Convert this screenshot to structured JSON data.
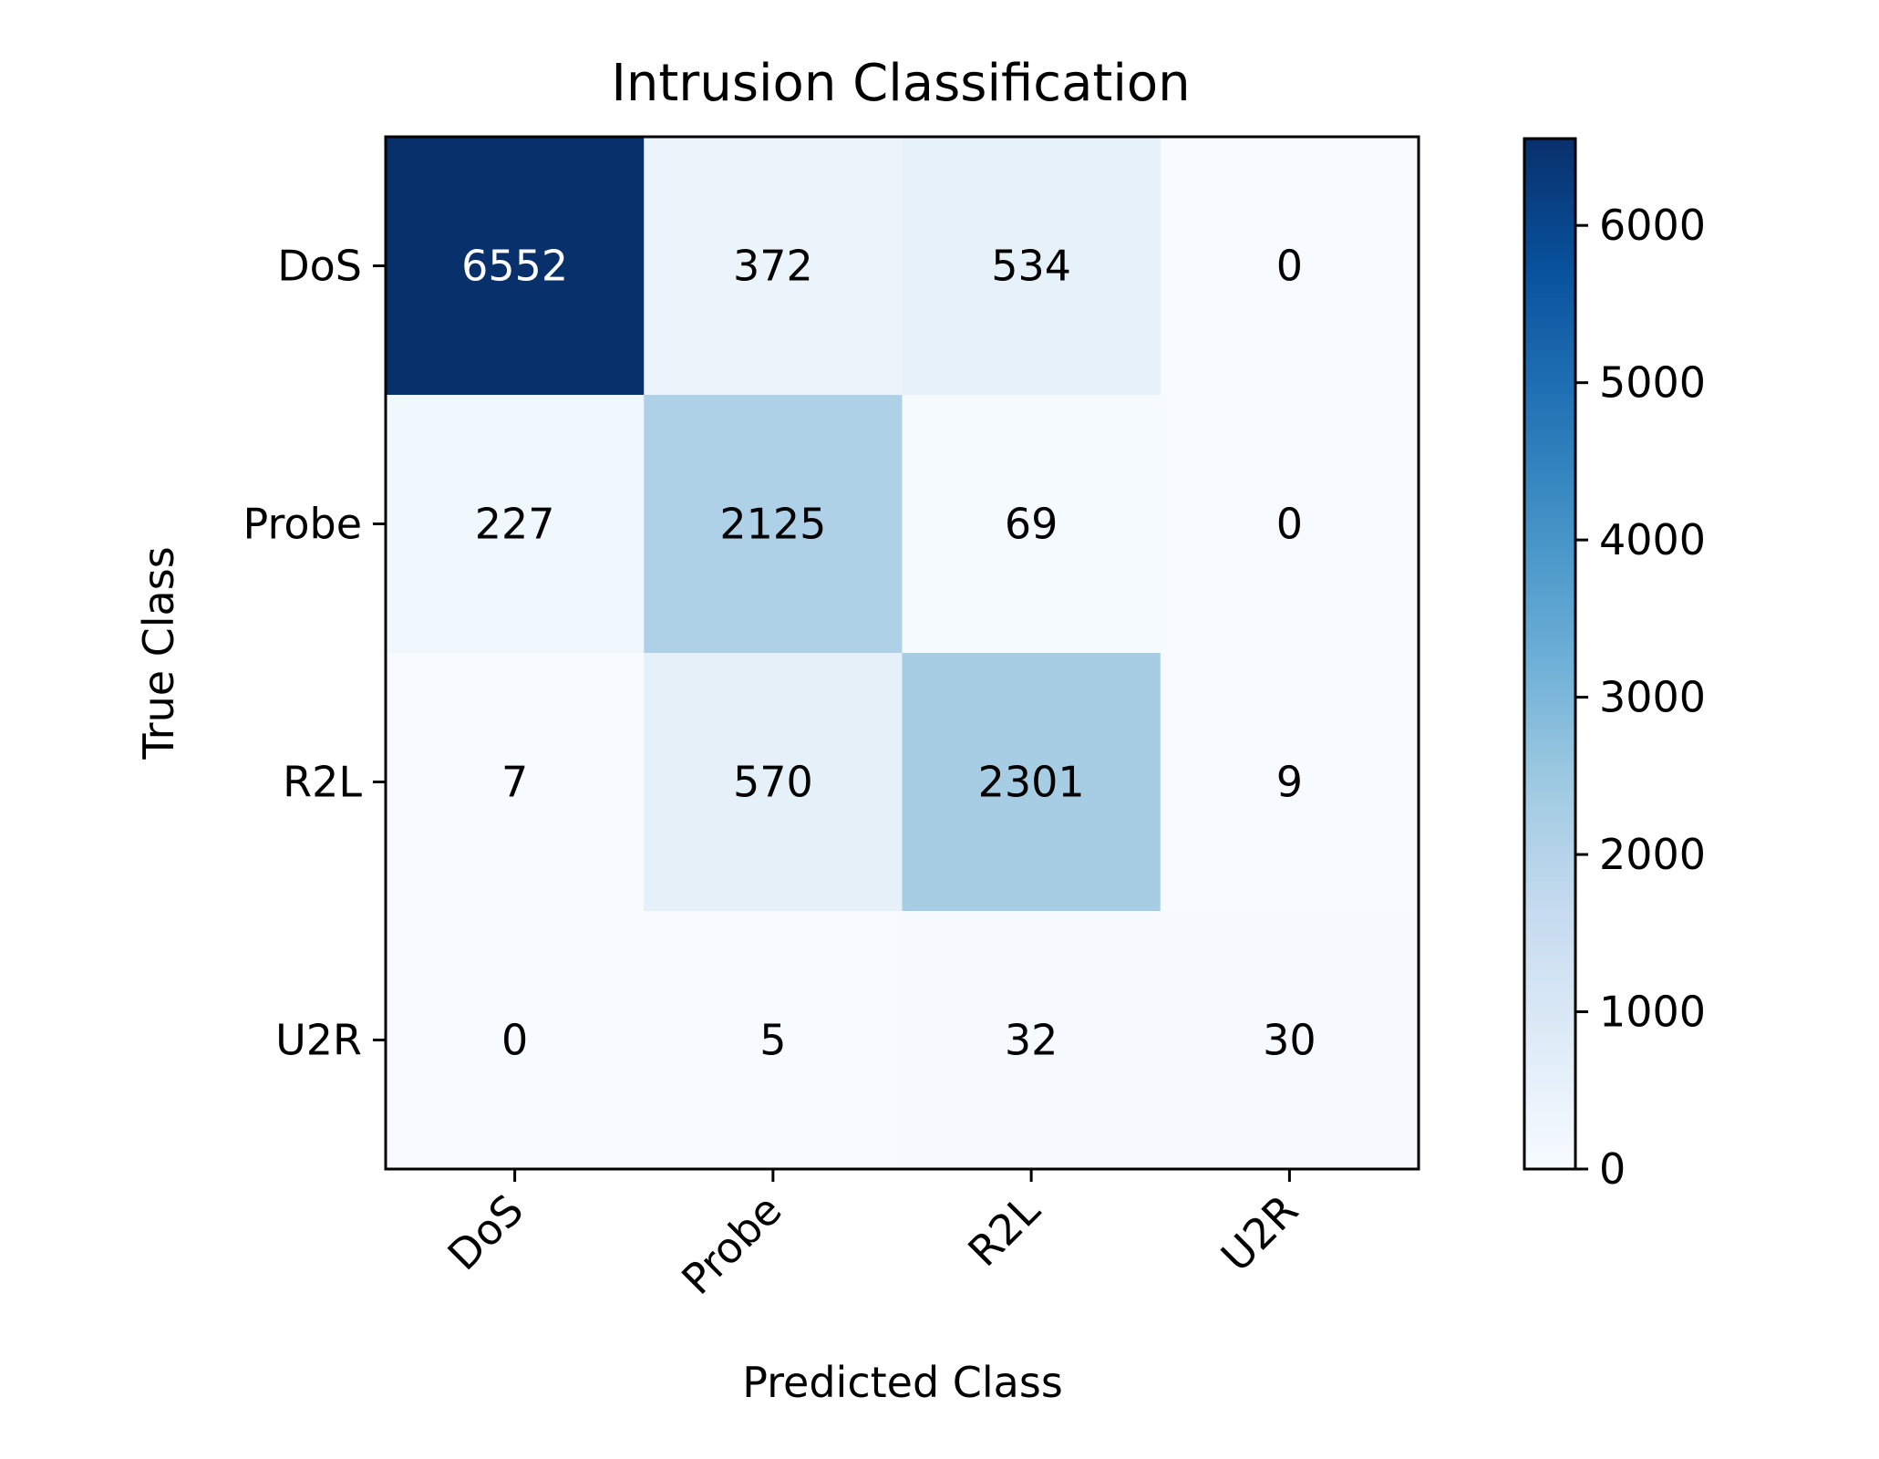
{
  "chart_data": {
    "type": "heatmap",
    "title": "Intrusion Classification",
    "xlabel": "Predicted Class",
    "ylabel": "True Class",
    "x_categories": [
      "DoS",
      "Probe",
      "R2L",
      "U2R"
    ],
    "y_categories": [
      "DoS",
      "Probe",
      "R2L",
      "U2R"
    ],
    "values": [
      [
        6552,
        372,
        534,
        0
      ],
      [
        227,
        2125,
        69,
        0
      ],
      [
        7,
        570,
        2301,
        9
      ],
      [
        0,
        5,
        32,
        30
      ]
    ],
    "colormap": "Blues",
    "color_range": [
      0,
      6552
    ],
    "colorbar_ticks": [
      "0",
      "1000",
      "2000",
      "3000",
      "4000",
      "5000",
      "6000"
    ],
    "x_tick_rotation_deg": 45,
    "grid": false
  }
}
